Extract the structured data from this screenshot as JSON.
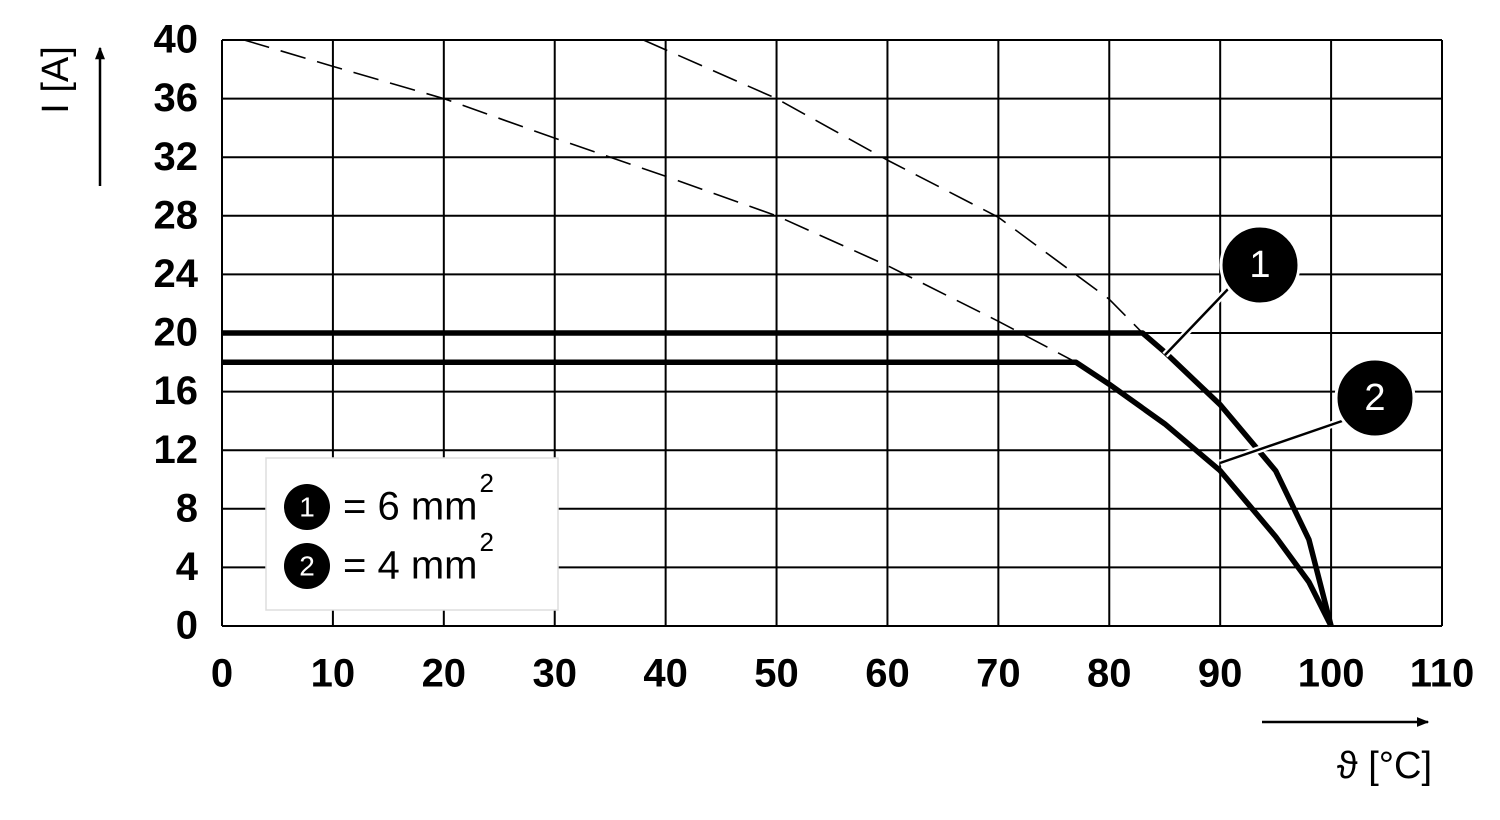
{
  "chart_data": {
    "type": "line",
    "xlabel": "ϑ [°C]",
    "ylabel": "I [A]",
    "xlim": [
      0,
      110
    ],
    "ylim": [
      0,
      40
    ],
    "xticks": [
      0,
      10,
      20,
      30,
      40,
      50,
      60,
      70,
      80,
      90,
      100,
      110
    ],
    "yticks": [
      0,
      4,
      8,
      12,
      16,
      20,
      24,
      28,
      32,
      36,
      40
    ],
    "grid": true,
    "series": [
      {
        "label": "1",
        "color": "#000000",
        "dashed": false,
        "x": [
          0,
          83,
          85,
          90,
          95,
          98,
          100
        ],
        "values": [
          20,
          20,
          18.7,
          15.1,
          10.6,
          5.9,
          0
        ]
      },
      {
        "label": "2",
        "color": "#000000",
        "dashed": false,
        "x": [
          0,
          77,
          80,
          85,
          90,
          95,
          98,
          100
        ],
        "values": [
          18,
          18,
          16.5,
          13.8,
          10.6,
          6.1,
          3,
          0
        ]
      },
      {
        "color": "#000000",
        "dashed": true,
        "x": [
          38,
          50,
          60,
          70,
          80,
          83
        ],
        "values": [
          40,
          36,
          31.8,
          27.9,
          22.3,
          20
        ]
      },
      {
        "color": "#000000",
        "dashed": true,
        "x": [
          2,
          10,
          20,
          30,
          40,
          50,
          60,
          70,
          77
        ],
        "values": [
          40,
          38.2,
          36,
          33.3,
          30.7,
          28,
          24.6,
          20.8,
          18
        ]
      }
    ],
    "legend": [
      {
        "marker": "1",
        "text": "= 6 mm",
        "sup": "2"
      },
      {
        "marker": "2",
        "text": "= 4 mm",
        "sup": "2"
      }
    ]
  }
}
